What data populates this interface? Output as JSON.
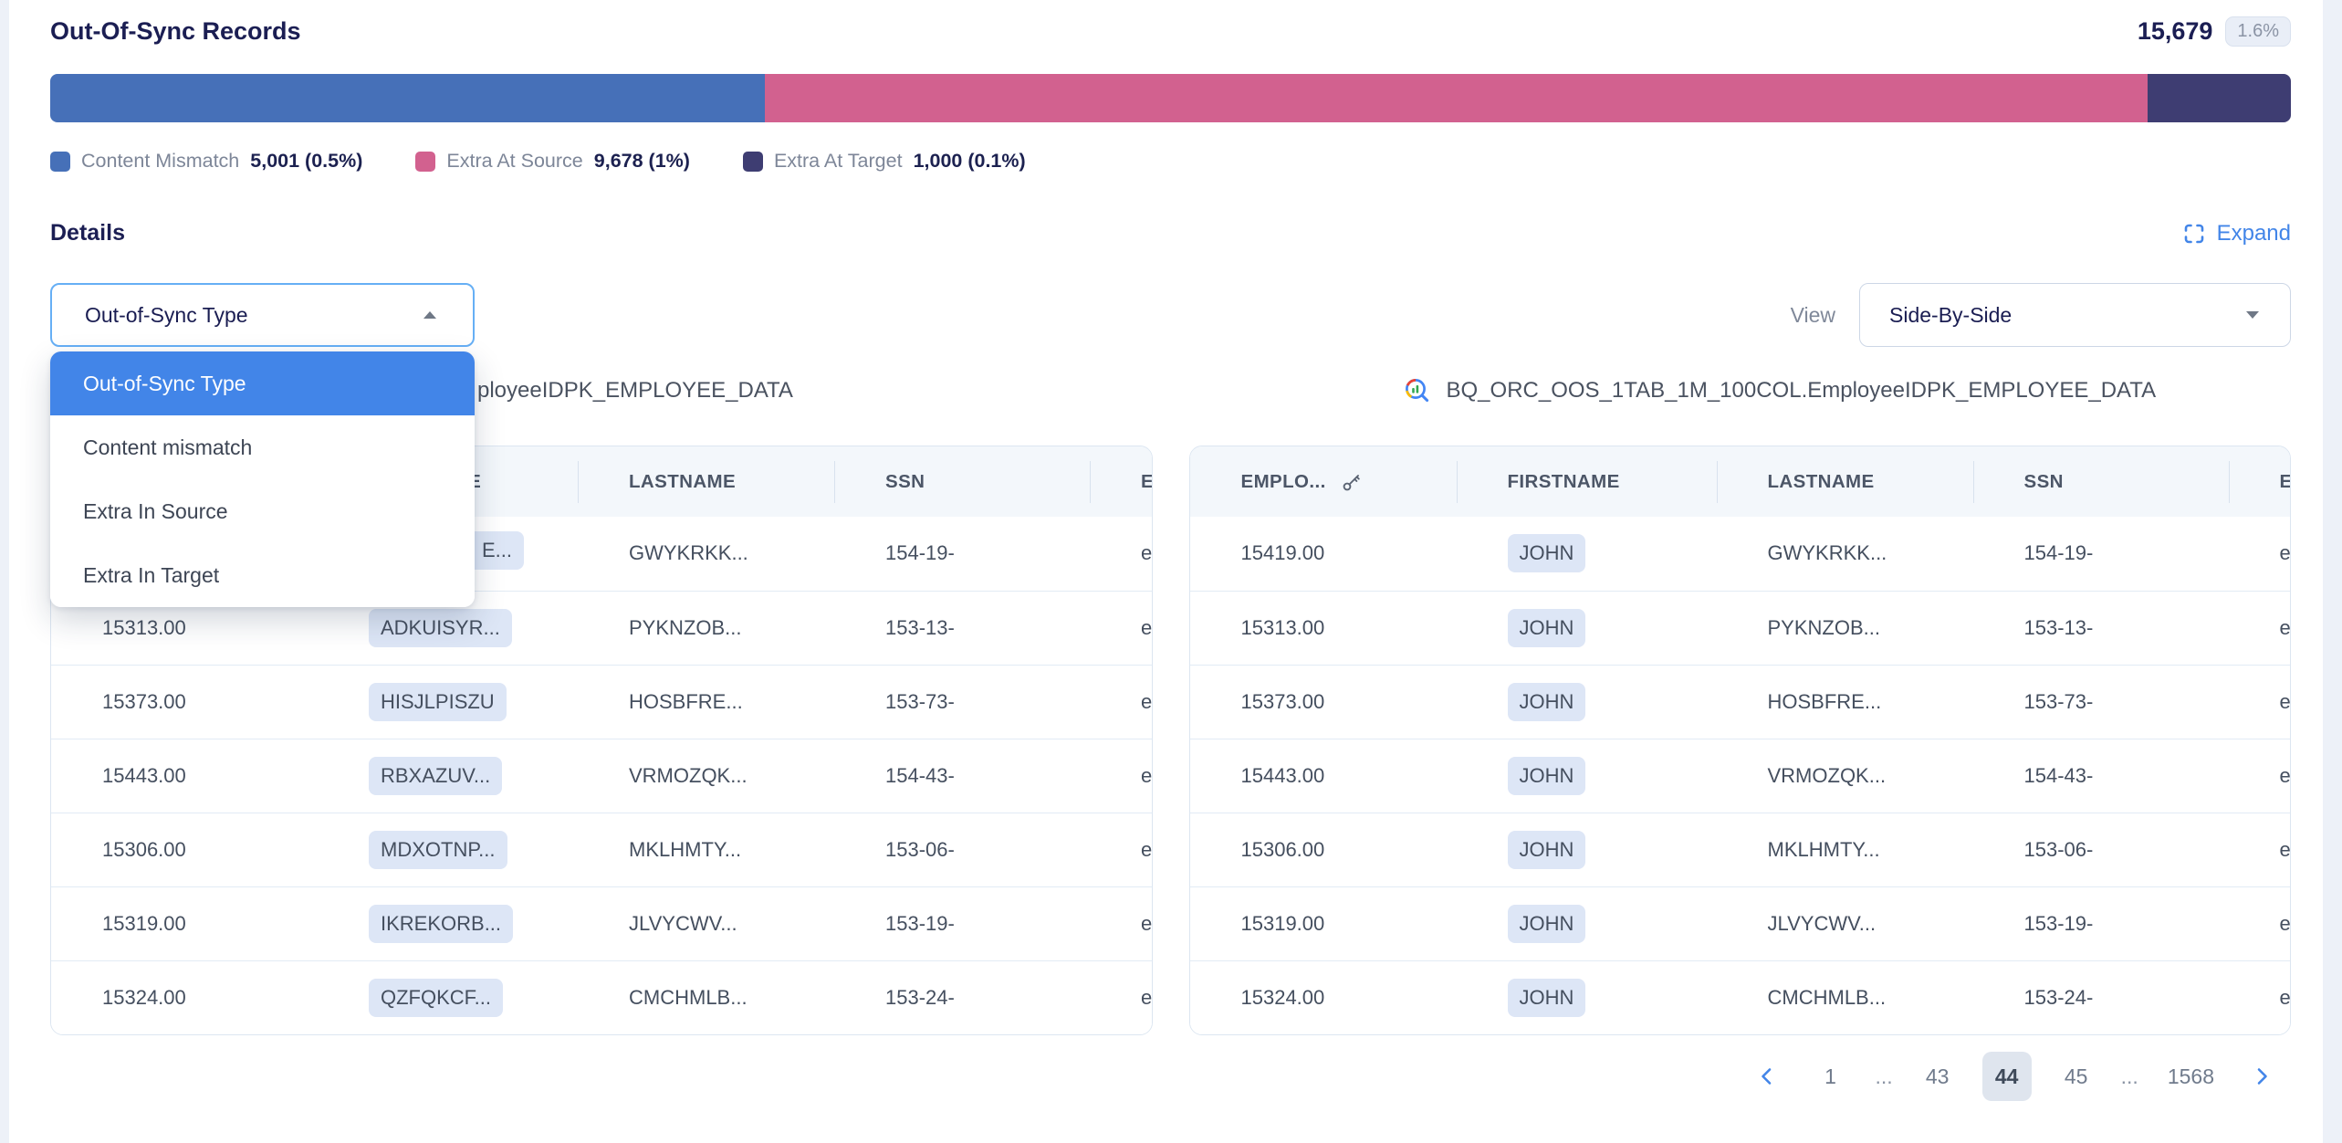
{
  "summary": {
    "title": "Out-Of-Sync Records",
    "total": "15,679",
    "badge": "1.6%",
    "segments": [
      {
        "label": "Content Mismatch",
        "value": "5,001 (0.5%)",
        "color": "#4670b8",
        "pct": 31.9
      },
      {
        "label": "Extra At Source",
        "value": "9,678 (1%)",
        "color": "#d2618f",
        "pct": 61.7
      },
      {
        "label": "Extra At Target",
        "value": "1,000 (0.1%)",
        "color": "#3e3d72",
        "pct": 6.4
      }
    ]
  },
  "details": {
    "heading": "Details",
    "expand_label": "Expand"
  },
  "filter": {
    "value": "Out-of-Sync Type",
    "open": true,
    "options": [
      "Out-of-Sync Type",
      "Content mismatch",
      "Extra In Source",
      "Extra In Target"
    ],
    "selected_index": 0
  },
  "view": {
    "label": "View",
    "value": "Side-By-Side"
  },
  "icons": {
    "expand": "expand-icon",
    "table_source": "bigquery-icon",
    "primary_key": "key-icon",
    "filter_caret": "caret-up-icon",
    "view_caret": "caret-down-icon",
    "pagination_prev": "chevron-left-icon",
    "pagination_next": "chevron-right-icon"
  },
  "tables": {
    "columns": [
      "EMPLO...",
      "FIRSTNAME",
      "LASTNAME",
      "SSN",
      "EMAIL"
    ],
    "pk_column_index": 0,
    "left": {
      "title_fragment": "ployeeIDPK_EMPLOYEE_DATA",
      "rows": [
        {
          "employee": "",
          "firstname": "E...",
          "firstname_clip": true,
          "lastname": "GWYKRKK...",
          "ssn": "154-19-",
          "email": "em"
        },
        {
          "employee": "15313.00",
          "firstname": "ADKUISYR...",
          "firstname_clip": false,
          "lastname": "PYKNZOB...",
          "ssn": "153-13-",
          "email": "em"
        },
        {
          "employee": "15373.00",
          "firstname": "HISJLPISZU",
          "firstname_clip": false,
          "lastname": "HOSBFRE...",
          "ssn": "153-73-",
          "email": "em"
        },
        {
          "employee": "15443.00",
          "firstname": "RBXAZUV...",
          "firstname_clip": false,
          "lastname": "VRMOZQK...",
          "ssn": "154-43-",
          "email": "em"
        },
        {
          "employee": "15306.00",
          "firstname": "MDXOTNP...",
          "firstname_clip": false,
          "lastname": "MKLHMTY...",
          "ssn": "153-06-",
          "email": "em"
        },
        {
          "employee": "15319.00",
          "firstname": "IKREKORB...",
          "firstname_clip": false,
          "lastname": "JLVYCWV...",
          "ssn": "153-19-",
          "email": "em"
        },
        {
          "employee": "15324.00",
          "firstname": "QZFQKCF...",
          "firstname_clip": false,
          "lastname": "CMCHMLB...",
          "ssn": "153-24-",
          "email": "em"
        }
      ]
    },
    "right": {
      "title": "BQ_ORC_OOS_1TAB_1M_100COL.EmployeeIDPK_EMPLOYEE_DATA",
      "rows": [
        {
          "employee": "15419.00",
          "firstname": "JOHN",
          "firstname_clip": false,
          "lastname": "GWYKRKK...",
          "ssn": "154-19-",
          "email": "em"
        },
        {
          "employee": "15313.00",
          "firstname": "JOHN",
          "firstname_clip": false,
          "lastname": "PYKNZOB...",
          "ssn": "153-13-",
          "email": "em"
        },
        {
          "employee": "15373.00",
          "firstname": "JOHN",
          "firstname_clip": false,
          "lastname": "HOSBFRE...",
          "ssn": "153-73-",
          "email": "em"
        },
        {
          "employee": "15443.00",
          "firstname": "JOHN",
          "firstname_clip": false,
          "lastname": "VRMOZQK...",
          "ssn": "154-43-",
          "email": "em"
        },
        {
          "employee": "15306.00",
          "firstname": "JOHN",
          "firstname_clip": false,
          "lastname": "MKLHMTY...",
          "ssn": "153-06-",
          "email": "em"
        },
        {
          "employee": "15319.00",
          "firstname": "JOHN",
          "firstname_clip": false,
          "lastname": "JLVYCWV...",
          "ssn": "153-19-",
          "email": "em"
        },
        {
          "employee": "15324.00",
          "firstname": "JOHN",
          "firstname_clip": false,
          "lastname": "CMCHMLB...",
          "ssn": "153-24-",
          "email": "em"
        }
      ]
    }
  },
  "pagination": {
    "pages": [
      "1",
      "...",
      "43",
      "44",
      "45",
      "...",
      "1568"
    ],
    "active": "44"
  }
}
